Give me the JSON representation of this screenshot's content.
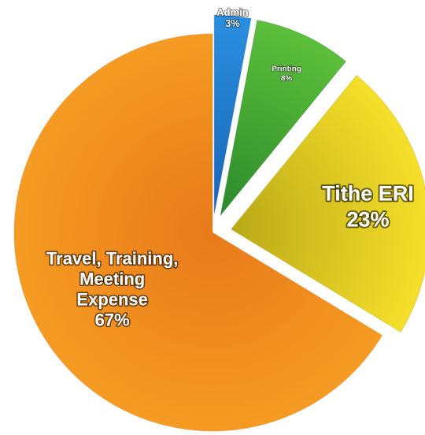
{
  "chart_data": {
    "type": "pie",
    "title": "",
    "legend": "none",
    "slices": [
      {
        "label": "Admin",
        "value": 3,
        "value_label": "3%",
        "color": "#2a8fe0",
        "color_dark": "#1a64b4",
        "exploded": true
      },
      {
        "label": "Printing",
        "value": 8,
        "value_label": "8%",
        "color": "#5cbf3a",
        "color_dark": "#2b8a2c",
        "exploded": true
      },
      {
        "label": "Tithe ERI",
        "value": 23,
        "value_label": "23%",
        "color": "#f6df2a",
        "color_dark": "#b9a818",
        "exploded": true
      },
      {
        "label": "Travel, Training, Meeting Expense",
        "value": 67,
        "value_label": "67%",
        "color": "#f59b22",
        "color_dark": "#e8791a",
        "exploded": false
      }
    ]
  }
}
